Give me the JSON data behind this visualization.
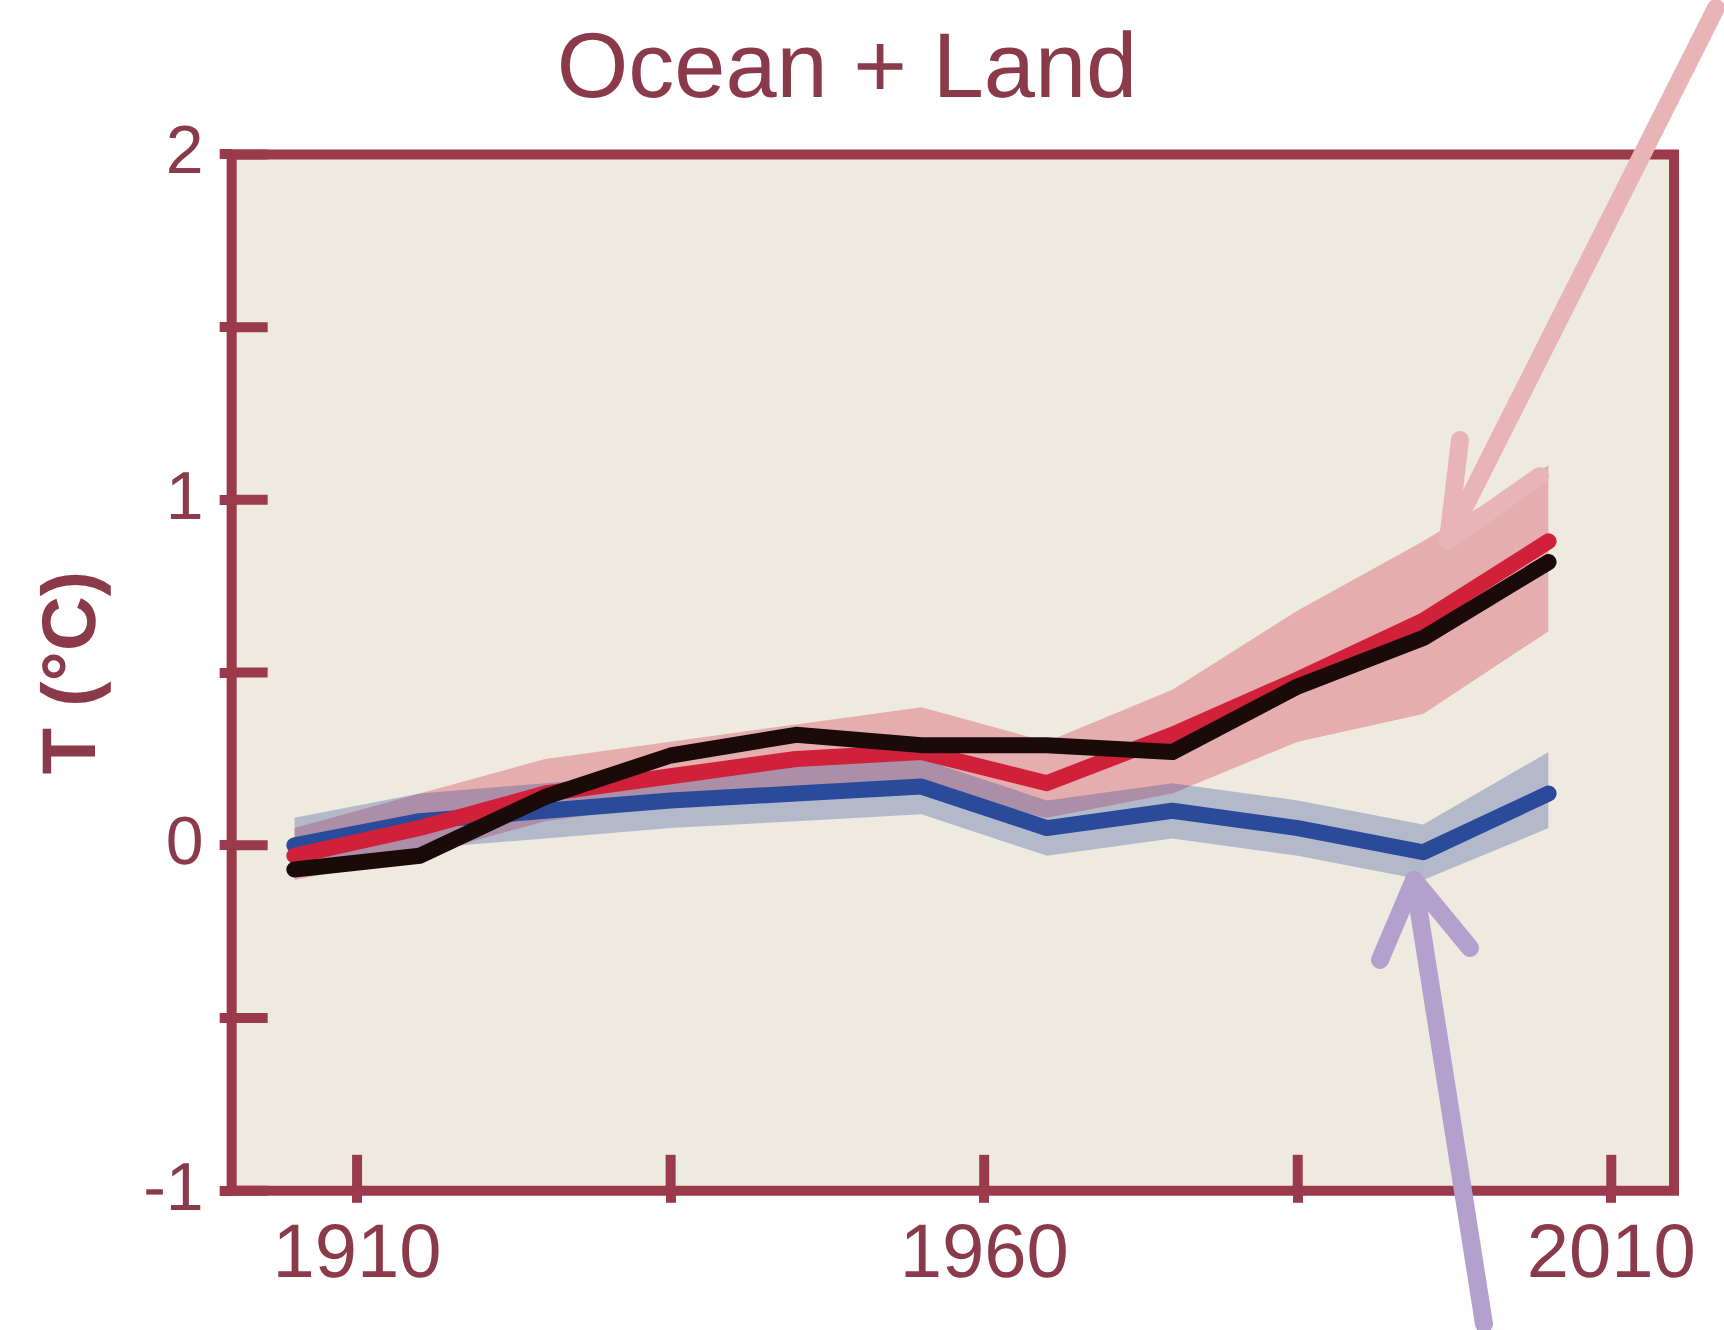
{
  "chart_data": {
    "type": "line",
    "title": "Ocean + Land",
    "ylabel": "T (°C)",
    "x": [
      1905,
      1915,
      1925,
      1935,
      1945,
      1955,
      1965,
      1975,
      1985,
      1995,
      2005
    ],
    "series": [
      {
        "color": "#2a4a9a",
        "values": [
          0,
          0.07,
          0.1,
          0.13,
          0.15,
          0.17,
          0.05,
          0.1,
          0.05,
          -0.02,
          0.15
        ],
        "lower": [
          -0.08,
          -0.01,
          0.02,
          0.05,
          0.07,
          0.09,
          -0.03,
          0.02,
          -0.03,
          -0.1,
          0.05
        ],
        "upper": [
          0.08,
          0.15,
          0.18,
          0.21,
          0.23,
          0.25,
          0.13,
          0.18,
          0.13,
          0.06,
          0.27
        ]
      },
      {
        "color": "#d0203a",
        "values": [
          -0.03,
          0.05,
          0.15,
          0.2,
          0.25,
          0.27,
          0.18,
          0.32,
          0.48,
          0.65,
          0.88
        ],
        "lower": [
          -0.1,
          -0.03,
          0.07,
          0.12,
          0.15,
          0.15,
          0.08,
          0.15,
          0.3,
          0.38,
          0.62
        ],
        "upper": [
          0.05,
          0.15,
          0.25,
          0.3,
          0.35,
          0.4,
          0.3,
          0.45,
          0.68,
          0.88,
          1.1
        ]
      },
      {
        "color": "#1a0a0a",
        "values": [
          -0.07,
          -0.03,
          0.14,
          0.26,
          0.32,
          0.29,
          0.29,
          0.27,
          0.46,
          0.6,
          0.82
        ]
      }
    ],
    "xlim": [
      1900,
      2015
    ],
    "xticks": [
      1910,
      {
        "value": 1935,
        "label": null
      },
      1960,
      {
        "value": 1985,
        "label": null
      },
      2010
    ],
    "ylim": [
      -1,
      2
    ],
    "yticks": [
      -1,
      {
        "value": -0.5,
        "label": null
      },
      0,
      {
        "value": 0.5,
        "label": null
      },
      1,
      {
        "value": 1.5,
        "label": null
      },
      2
    ],
    "grid": false,
    "legend": false,
    "marker": "none",
    "line_style": "solid"
  }
}
